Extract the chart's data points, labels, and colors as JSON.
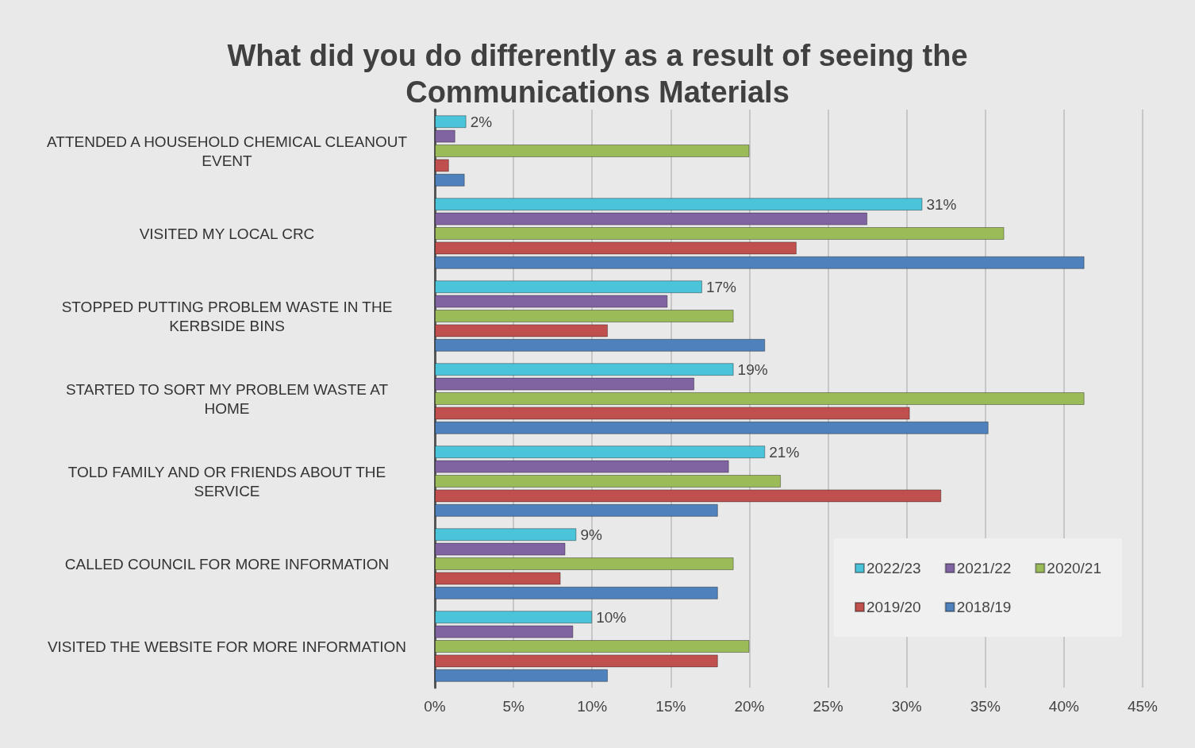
{
  "chart_data": {
    "type": "bar",
    "orientation": "horizontal",
    "title": "What did you do differently as a result of seeing the\nCommunications Materials",
    "categories": [
      "ATTENDED A HOUSEHOLD CHEMICAL CLEANOUT\nEVENT",
      "VISITED MY LOCAL CRC",
      "STOPPED PUTTING PROBLEM WASTE IN THE\nKERBSIDE BINS",
      "STARTED TO SORT MY PROBLEM WASTE AT\nHOME",
      "TOLD FAMILY AND OR FRIENDS ABOUT THE\nSERVICE",
      "CALLED COUNCIL FOR MORE INFORMATION",
      "VISITED THE WEBSITE FOR MORE INFORMATION"
    ],
    "series": [
      {
        "name": "2022/23",
        "color": "#4bc3d9",
        "values": [
          2,
          31,
          17,
          19,
          21,
          9,
          10
        ],
        "value_labels": [
          "2%",
          "31%",
          "17%",
          "19%",
          "21%",
          "9%",
          "10%"
        ]
      },
      {
        "name": "2021/22",
        "color": "#8064a2",
        "values": [
          1.3,
          27.5,
          14.8,
          16.5,
          18.7,
          8.3,
          8.8
        ]
      },
      {
        "name": "2020/21",
        "color": "#9bbb59",
        "values": [
          20,
          36.2,
          19,
          41.3,
          22,
          19,
          20
        ]
      },
      {
        "name": "2019/20",
        "color": "#c0504d",
        "values": [
          0.9,
          23,
          11,
          30.2,
          32.2,
          8,
          18
        ]
      },
      {
        "name": "2018/19",
        "color": "#4f81bd",
        "values": [
          1.9,
          41.3,
          21,
          35.2,
          18,
          18,
          11
        ]
      }
    ],
    "xlim": [
      0,
      45
    ],
    "xticks": [
      {
        "value": 0,
        "label": "0%"
      },
      {
        "value": 5,
        "label": "5%"
      },
      {
        "value": 10,
        "label": "10%"
      },
      {
        "value": 15,
        "label": "15%"
      },
      {
        "value": 20,
        "label": "20%"
      },
      {
        "value": 25,
        "label": "25%"
      },
      {
        "value": 30,
        "label": "30%"
      },
      {
        "value": 35,
        "label": "35%"
      },
      {
        "value": 40,
        "label": "40%"
      },
      {
        "value": 45,
        "label": "45%"
      }
    ],
    "grid": "x",
    "legend": "bottom right"
  }
}
